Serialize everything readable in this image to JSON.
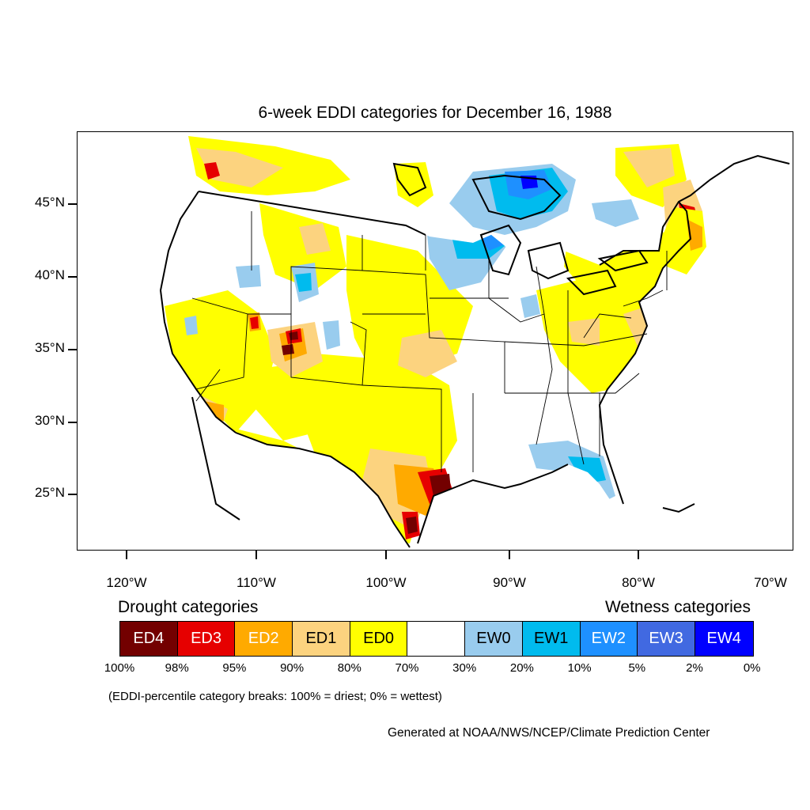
{
  "title": "6-week EDDI categories for December 16, 1988",
  "map": {
    "lat_labels": [
      "45°N",
      "40°N",
      "35°N",
      "30°N",
      "25°N"
    ],
    "lon_labels": [
      "120°W",
      "110°W",
      "100°W",
      "90°W",
      "80°W",
      "70°W"
    ]
  },
  "legend": {
    "drought_heading": "Drought categories",
    "wetness_heading": "Wetness categories",
    "categories": [
      {
        "label": "ED4",
        "color": "#730000",
        "text_color": "#ffffff"
      },
      {
        "label": "ED3",
        "color": "#e60000",
        "text_color": "#ffffff"
      },
      {
        "label": "ED2",
        "color": "#ffaa00",
        "text_color": "#ffffff"
      },
      {
        "label": "ED1",
        "color": "#fcd37f",
        "text_color": "#000000"
      },
      {
        "label": "ED0",
        "color": "#ffff00",
        "text_color": "#000000"
      },
      {
        "label": "",
        "color": "#ffffff",
        "text_color": "#000000"
      },
      {
        "label": "EW0",
        "color": "#99ccee",
        "text_color": "#000000"
      },
      {
        "label": "EW1",
        "color": "#00bbee",
        "text_color": "#000000"
      },
      {
        "label": "EW2",
        "color": "#1e90ff",
        "text_color": "#ffffff"
      },
      {
        "label": "EW3",
        "color": "#4169e1",
        "text_color": "#ffffff"
      },
      {
        "label": "EW4",
        "color": "#0000ff",
        "text_color": "#ffffff"
      }
    ],
    "breaks": [
      "100%",
      "98%",
      "95%",
      "90%",
      "80%",
      "70%",
      "30%",
      "20%",
      "10%",
      "5%",
      "2%",
      "0%"
    ]
  },
  "note": "(EDDI-percentile category breaks: 100% = driest; 0% = wettest)",
  "credit": "Generated at NOAA/NWS/NCEP/Climate Prediction Center"
}
